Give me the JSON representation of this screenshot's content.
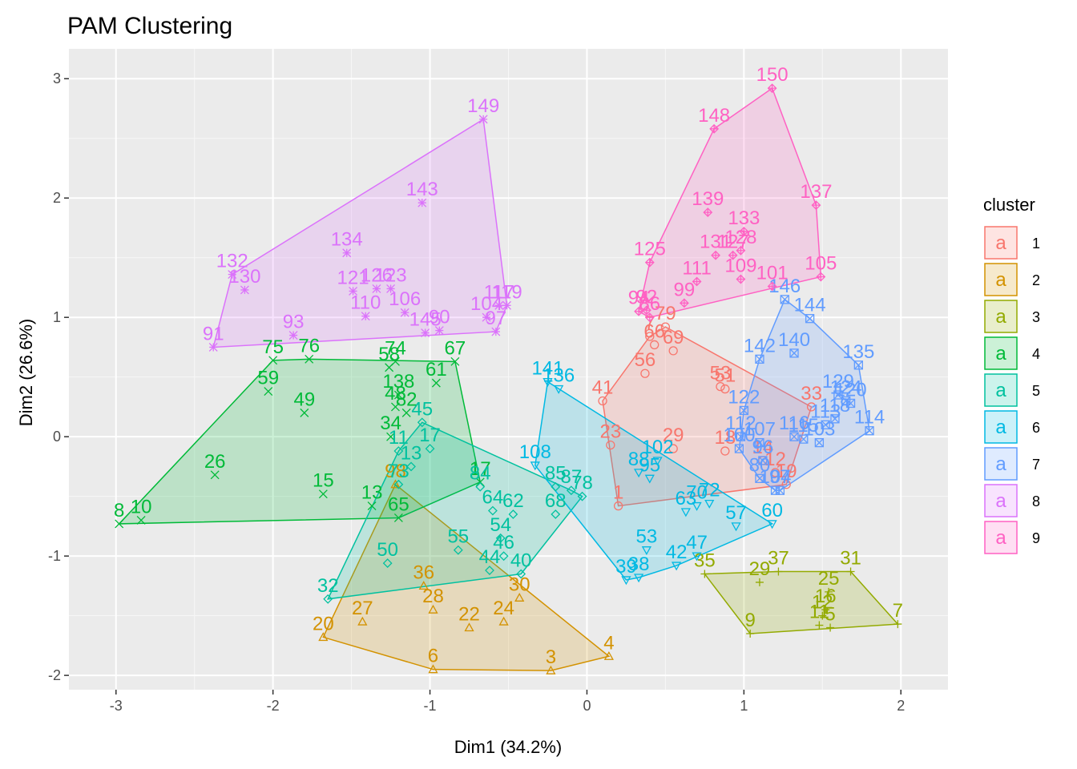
{
  "chart_data": {
    "type": "scatter",
    "title": "PAM Clustering",
    "xlabel": "Dim1 (34.2%)",
    "ylabel": "Dim2 (26.6%)",
    "xlim": [
      -3.3,
      2.3
    ],
    "ylim": [
      -2.12,
      3.25
    ],
    "x_ticks": [
      -3,
      -2,
      -1,
      0,
      1,
      2
    ],
    "y_ticks": [
      -2,
      -1,
      0,
      1,
      2,
      3
    ],
    "x_tick_labels": [
      "-3",
      "-2",
      "-1",
      "0",
      "1",
      "2"
    ],
    "y_tick_labels": [
      "-2",
      "-1",
      "0",
      "1",
      "2",
      "3"
    ],
    "grid": true,
    "hull": true,
    "legend": {
      "title": "cluster",
      "position": "right",
      "entries": [
        "1",
        "2",
        "3",
        "4",
        "5",
        "6",
        "7",
        "8",
        "9"
      ],
      "key_glyph": "a"
    },
    "colors": {
      "1": "#F8766D",
      "2": "#D39200",
      "3": "#93AA00",
      "4": "#00BA38",
      "5": "#00C19F",
      "6": "#00B9E3",
      "7": "#619CFF",
      "8": "#DB72FB",
      "9": "#FF61C3"
    },
    "series": [
      {
        "name": "1",
        "points": [
          {
            "label": "41",
            "x": 0.1,
            "y": 0.3
          },
          {
            "label": "23",
            "x": 0.15,
            "y": -0.07
          },
          {
            "label": "1",
            "x": 0.2,
            "y": -0.58
          },
          {
            "label": "56",
            "x": 0.37,
            "y": 0.53
          },
          {
            "label": "7",
            "x": 0.4,
            "y": 0.84
          },
          {
            "label": "66",
            "x": 0.43,
            "y": 0.77
          },
          {
            "label": "69",
            "x": 0.55,
            "y": 0.72
          },
          {
            "label": "79",
            "x": 0.5,
            "y": 0.92
          },
          {
            "label": "51",
            "x": 0.88,
            "y": 0.4
          },
          {
            "label": "53",
            "x": 0.85,
            "y": 0.42
          },
          {
            "label": "29",
            "x": 0.55,
            "y": -0.1
          },
          {
            "label": "18",
            "x": 0.88,
            "y": -0.12
          },
          {
            "label": "14",
            "x": 1.12,
            "y": -0.2
          },
          {
            "label": "12",
            "x": 1.2,
            "y": -0.3
          },
          {
            "label": "33",
            "x": 1.43,
            "y": 0.25
          },
          {
            "label": "19",
            "x": 1.27,
            "y": -0.4
          }
        ]
      },
      {
        "name": "2",
        "points": [
          {
            "label": "98",
            "x": -1.22,
            "y": -0.4
          },
          {
            "label": "36",
            "x": -1.04,
            "y": -1.25
          },
          {
            "label": "28",
            "x": -0.98,
            "y": -1.45
          },
          {
            "label": "27",
            "x": -1.43,
            "y": -1.55
          },
          {
            "label": "20",
            "x": -1.68,
            "y": -1.68
          },
          {
            "label": "22",
            "x": -0.75,
            "y": -1.6
          },
          {
            "label": "24",
            "x": -0.53,
            "y": -1.55
          },
          {
            "label": "30",
            "x": -0.43,
            "y": -1.35
          },
          {
            "label": "6",
            "x": -0.98,
            "y": -1.95
          },
          {
            "label": "3",
            "x": -0.23,
            "y": -1.96
          },
          {
            "label": "4",
            "x": 0.14,
            "y": -1.84
          }
        ]
      },
      {
        "name": "3",
        "points": [
          {
            "label": "35",
            "x": 0.75,
            "y": -1.15
          },
          {
            "label": "29",
            "x": 1.1,
            "y": -1.22
          },
          {
            "label": "37",
            "x": 1.22,
            "y": -1.13
          },
          {
            "label": "31",
            "x": 1.68,
            "y": -1.13
          },
          {
            "label": "25",
            "x": 1.54,
            "y": -1.3
          },
          {
            "label": "16",
            "x": 1.52,
            "y": -1.45
          },
          {
            "label": "12",
            "x": 1.5,
            "y": -1.5
          },
          {
            "label": "11",
            "x": 1.48,
            "y": -1.58
          },
          {
            "label": "5",
            "x": 1.55,
            "y": -1.6
          },
          {
            "label": "9",
            "x": 1.04,
            "y": -1.65
          },
          {
            "label": "7",
            "x": 1.98,
            "y": -1.57
          }
        ]
      },
      {
        "name": "4",
        "points": [
          {
            "label": "75",
            "x": -2.0,
            "y": 0.64
          },
          {
            "label": "76",
            "x": -1.77,
            "y": 0.65
          },
          {
            "label": "59",
            "x": -2.03,
            "y": 0.38
          },
          {
            "label": "49",
            "x": -1.8,
            "y": 0.2
          },
          {
            "label": "26",
            "x": -2.37,
            "y": -0.32
          },
          {
            "label": "15",
            "x": -1.68,
            "y": -0.48
          },
          {
            "label": "8",
            "x": -2.98,
            "y": -0.73
          },
          {
            "label": "10",
            "x": -2.84,
            "y": -0.7
          },
          {
            "label": "74",
            "x": -1.22,
            "y": 0.63
          },
          {
            "label": "58",
            "x": -1.26,
            "y": 0.58
          },
          {
            "label": "61",
            "x": -0.96,
            "y": 0.45
          },
          {
            "label": "67",
            "x": -0.84,
            "y": 0.63
          },
          {
            "label": "48",
            "x": -1.22,
            "y": 0.25
          },
          {
            "label": "82",
            "x": -1.15,
            "y": 0.2
          },
          {
            "label": "34",
            "x": -1.25,
            "y": 0.0
          },
          {
            "label": "17",
            "x": -0.68,
            "y": -0.38
          },
          {
            "label": "138",
            "x": -1.2,
            "y": 0.35
          },
          {
            "label": "13",
            "x": -1.37,
            "y": -0.58
          },
          {
            "label": "65",
            "x": -1.2,
            "y": -0.68
          }
        ]
      },
      {
        "name": "5",
        "points": [
          {
            "label": "45",
            "x": -1.05,
            "y": 0.12
          },
          {
            "label": "11",
            "x": -1.2,
            "y": -0.12
          },
          {
            "label": "13",
            "x": -1.12,
            "y": -0.25
          },
          {
            "label": "17",
            "x": -1.0,
            "y": -0.1
          },
          {
            "label": "84",
            "x": -0.68,
            "y": -0.42
          },
          {
            "label": "64",
            "x": -0.6,
            "y": -0.62
          },
          {
            "label": "62",
            "x": -0.47,
            "y": -0.65
          },
          {
            "label": "55",
            "x": -0.82,
            "y": -0.95
          },
          {
            "label": "54",
            "x": -0.55,
            "y": -0.85
          },
          {
            "label": "46",
            "x": -0.53,
            "y": -1.0
          },
          {
            "label": "44",
            "x": -0.62,
            "y": -1.12
          },
          {
            "label": "40",
            "x": -0.42,
            "y": -1.15
          },
          {
            "label": "50",
            "x": -1.27,
            "y": -1.06
          },
          {
            "label": "32",
            "x": -1.65,
            "y": -1.36
          },
          {
            "label": "68",
            "x": -0.2,
            "y": -0.65
          },
          {
            "label": "85",
            "x": -0.2,
            "y": -0.42
          },
          {
            "label": "87",
            "x": -0.1,
            "y": -0.45
          },
          {
            "label": "78",
            "x": -0.03,
            "y": -0.5
          },
          {
            "label": "73",
            "x": -1.2,
            "y": -0.4
          }
        ]
      },
      {
        "name": "6",
        "points": [
          {
            "label": "141",
            "x": -0.25,
            "y": 0.46
          },
          {
            "label": "136",
            "x": -0.18,
            "y": 0.4
          },
          {
            "label": "108",
            "x": -0.33,
            "y": -0.24
          },
          {
            "label": "102",
            "x": 0.45,
            "y": -0.2
          },
          {
            "label": "88",
            "x": 0.33,
            "y": -0.3
          },
          {
            "label": "95",
            "x": 0.4,
            "y": -0.35
          },
          {
            "label": "63",
            "x": 0.63,
            "y": -0.63
          },
          {
            "label": "70",
            "x": 0.7,
            "y": -0.58
          },
          {
            "label": "72",
            "x": 0.78,
            "y": -0.56
          },
          {
            "label": "57",
            "x": 0.95,
            "y": -0.75
          },
          {
            "label": "60",
            "x": 1.18,
            "y": -0.73
          },
          {
            "label": "53",
            "x": 0.38,
            "y": -0.95
          },
          {
            "label": "47",
            "x": 0.7,
            "y": -1.0
          },
          {
            "label": "42",
            "x": 0.57,
            "y": -1.08
          },
          {
            "label": "39",
            "x": 0.25,
            "y": -1.2
          },
          {
            "label": "38",
            "x": 0.33,
            "y": -1.18
          }
        ]
      },
      {
        "name": "7",
        "points": [
          {
            "label": "146",
            "x": 1.26,
            "y": 1.15
          },
          {
            "label": "144",
            "x": 1.42,
            "y": 0.99
          },
          {
            "label": "142",
            "x": 1.1,
            "y": 0.65
          },
          {
            "label": "140",
            "x": 1.32,
            "y": 0.7
          },
          {
            "label": "135",
            "x": 1.73,
            "y": 0.6
          },
          {
            "label": "122",
            "x": 1.0,
            "y": 0.22
          },
          {
            "label": "129",
            "x": 1.6,
            "y": 0.35
          },
          {
            "label": "124",
            "x": 1.65,
            "y": 0.3
          },
          {
            "label": "120",
            "x": 1.68,
            "y": 0.28
          },
          {
            "label": "114",
            "x": 1.8,
            "y": 0.05
          },
          {
            "label": "116",
            "x": 1.32,
            "y": 0.0
          },
          {
            "label": "115",
            "x": 1.38,
            "y": -0.02
          },
          {
            "label": "103",
            "x": 1.48,
            "y": -0.05
          },
          {
            "label": "113",
            "x": 1.52,
            "y": 0.1
          },
          {
            "label": "118",
            "x": 1.58,
            "y": 0.15
          },
          {
            "label": "112",
            "x": 0.98,
            "y": 0.0
          },
          {
            "label": "100",
            "x": 0.97,
            "y": -0.1
          },
          {
            "label": "107",
            "x": 1.1,
            "y": -0.05
          },
          {
            "label": "96",
            "x": 1.12,
            "y": -0.2
          },
          {
            "label": "80",
            "x": 1.1,
            "y": -0.35
          },
          {
            "label": "97",
            "x": 1.23,
            "y": -0.45
          },
          {
            "label": "104",
            "x": 1.2,
            "y": -0.45
          }
        ]
      },
      {
        "name": "8",
        "points": [
          {
            "label": "149",
            "x": -0.66,
            "y": 2.66
          },
          {
            "label": "143",
            "x": -1.05,
            "y": 1.96
          },
          {
            "label": "134",
            "x": -1.53,
            "y": 1.54
          },
          {
            "label": "132",
            "x": -2.26,
            "y": 1.36
          },
          {
            "label": "130",
            "x": -2.18,
            "y": 1.23
          },
          {
            "label": "121",
            "x": -1.49,
            "y": 1.22
          },
          {
            "label": "126",
            "x": -1.34,
            "y": 1.24
          },
          {
            "label": "123",
            "x": -1.25,
            "y": 1.24
          },
          {
            "label": "110",
            "x": -1.41,
            "y": 1.01
          },
          {
            "label": "106",
            "x": -1.16,
            "y": 1.04
          },
          {
            "label": "145",
            "x": -1.03,
            "y": 0.87
          },
          {
            "label": "90",
            "x": -0.94,
            "y": 0.89
          },
          {
            "label": "117",
            "x": -0.56,
            "y": 1.1
          },
          {
            "label": "119",
            "x": -0.51,
            "y": 1.1
          },
          {
            "label": "104",
            "x": -0.64,
            "y": 1.0
          },
          {
            "label": "97",
            "x": -0.58,
            "y": 0.88
          },
          {
            "label": "91",
            "x": -2.38,
            "y": 0.75
          },
          {
            "label": "93",
            "x": -1.87,
            "y": 0.85
          }
        ]
      },
      {
        "name": "9",
        "points": [
          {
            "label": "150",
            "x": 1.18,
            "y": 2.92
          },
          {
            "label": "148",
            "x": 0.81,
            "y": 2.58
          },
          {
            "label": "137",
            "x": 1.46,
            "y": 1.94
          },
          {
            "label": "139",
            "x": 0.77,
            "y": 1.88
          },
          {
            "label": "133",
            "x": 1.0,
            "y": 1.72
          },
          {
            "label": "131",
            "x": 0.82,
            "y": 1.52
          },
          {
            "label": "127",
            "x": 0.93,
            "y": 1.52
          },
          {
            "label": "128",
            "x": 0.98,
            "y": 1.56
          },
          {
            "label": "125",
            "x": 0.4,
            "y": 1.46
          },
          {
            "label": "111",
            "x": 0.7,
            "y": 1.3
          },
          {
            "label": "109",
            "x": 0.98,
            "y": 1.32
          },
          {
            "label": "101",
            "x": 1.18,
            "y": 1.26
          },
          {
            "label": "105",
            "x": 1.49,
            "y": 1.34
          },
          {
            "label": "94",
            "x": 0.33,
            "y": 1.05
          },
          {
            "label": "92",
            "x": 0.38,
            "y": 1.06
          },
          {
            "label": "86",
            "x": 0.4,
            "y": 1.0
          },
          {
            "label": "99",
            "x": 0.62,
            "y": 1.12
          }
        ]
      }
    ]
  }
}
